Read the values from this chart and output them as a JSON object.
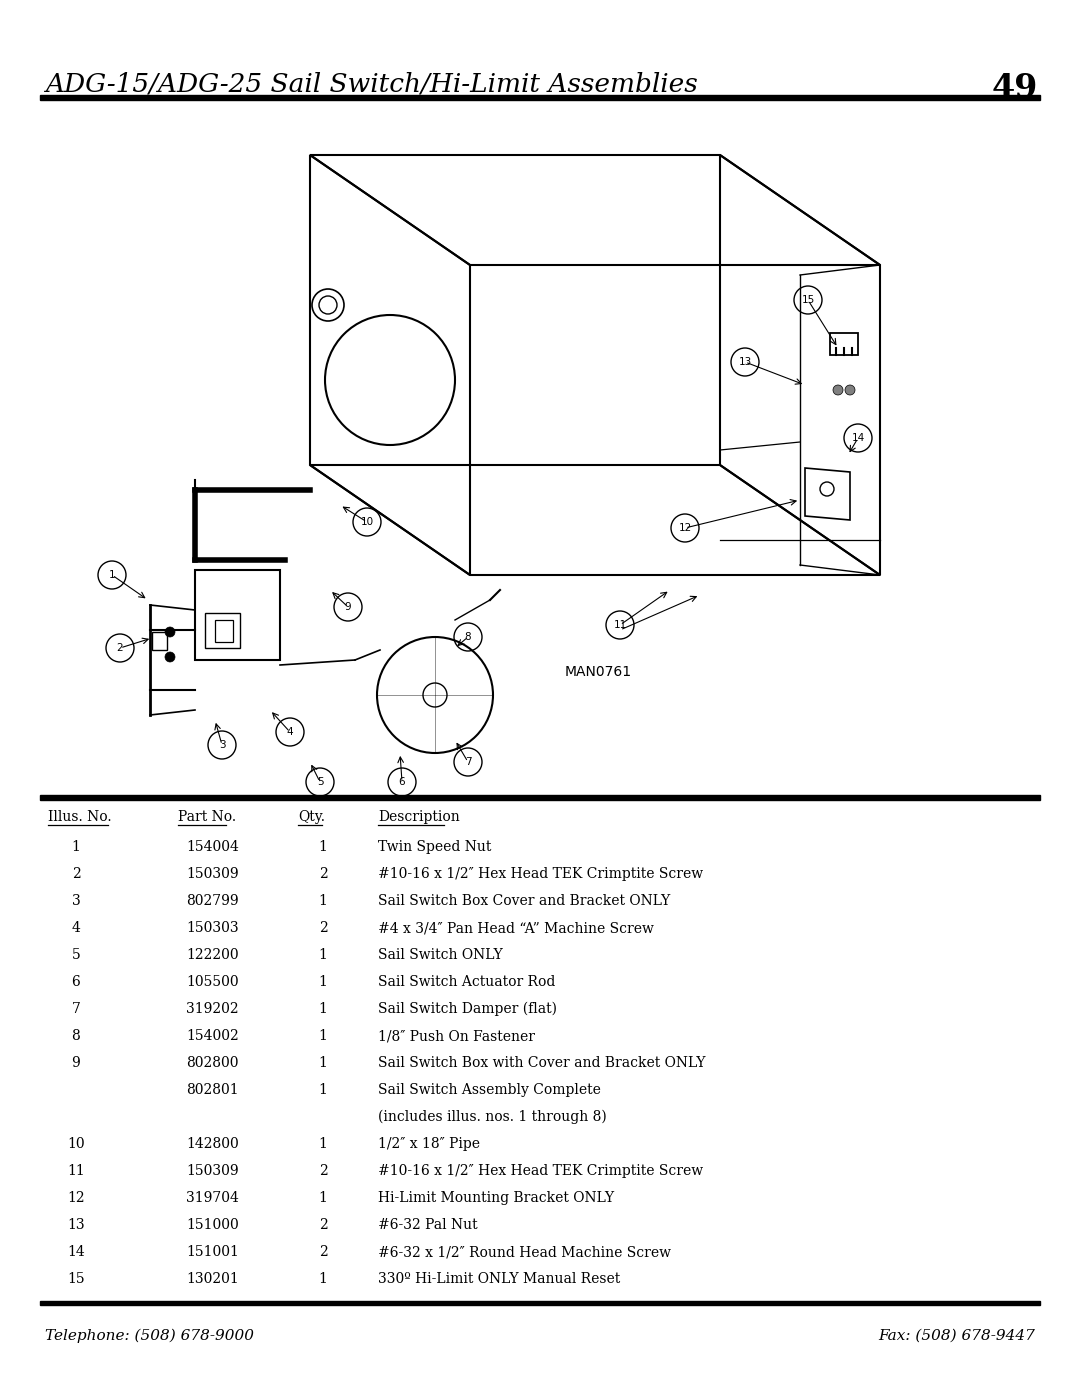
{
  "title": "ADG-15/ADG-25 Sail Switch/Hi-Limit Assemblies",
  "page_number": "49",
  "diagram_label": "MAN0761",
  "telephone": "Telephone: (508) 678-9000",
  "fax": "Fax: (508) 678-9447",
  "bg_color": "#ffffff",
  "text_color": "#000000",
  "table_headers": [
    "Illus. No.",
    "Part No.",
    "Qty.",
    "Description"
  ],
  "table_rows": [
    [
      "1",
      "154004",
      "1",
      "Twin Speed Nut"
    ],
    [
      "2",
      "150309",
      "2",
      "#10-16 x 1/2″ Hex Head TEK Crimptite Screw"
    ],
    [
      "3",
      "802799",
      "1",
      "Sail Switch Box Cover and Bracket ONLY"
    ],
    [
      "4",
      "150303",
      "2",
      "#4 x 3/4″ Pan Head “A” Machine Screw"
    ],
    [
      "5",
      "122200",
      "1",
      "Sail Switch ONLY"
    ],
    [
      "6",
      "105500",
      "1",
      "Sail Switch Actuator Rod"
    ],
    [
      "7",
      "319202",
      "1",
      "Sail Switch Damper (flat)"
    ],
    [
      "8",
      "154002",
      "1",
      "1/8″ Push On Fastener"
    ],
    [
      "9",
      "802800",
      "1",
      "Sail Switch Box with Cover and Bracket ONLY"
    ],
    [
      "",
      "802801",
      "1",
      "Sail Switch Assembly Complete"
    ],
    [
      "",
      "",
      "",
      "(includes illus. nos. 1 through 8)"
    ],
    [
      "10",
      "142800",
      "1",
      "1/2″ x 18″ Pipe"
    ],
    [
      "11",
      "150309",
      "2",
      "#10-16 x 1/2″ Hex Head TEK Crimptite Screw"
    ],
    [
      "12",
      "319704",
      "1",
      "Hi-Limit Mounting Bracket ONLY"
    ],
    [
      "13",
      "151000",
      "2",
      "#6-32 Pal Nut"
    ],
    [
      "14",
      "151001",
      "2",
      "#6-32 x 1/2″ Round Head Machine Screw"
    ],
    [
      "15",
      "130201",
      "1",
      "330º Hi-Limit ONLY Manual Reset"
    ]
  ]
}
